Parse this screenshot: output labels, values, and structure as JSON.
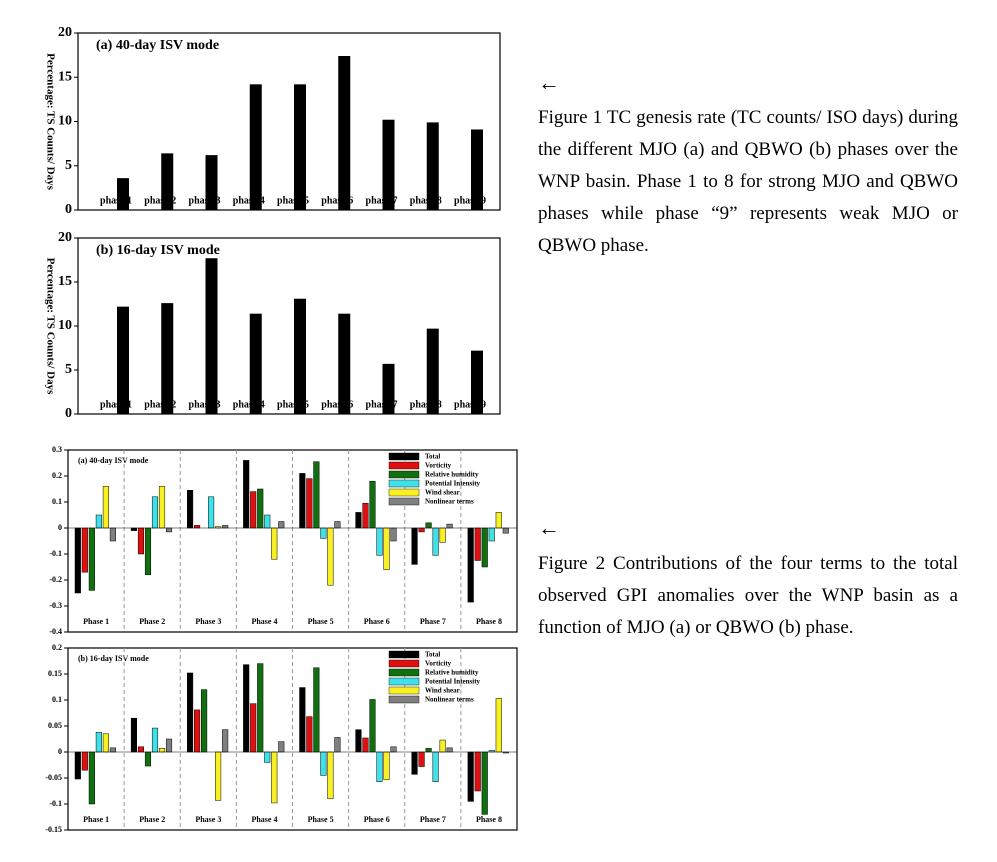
{
  "chart_data": [
    {
      "type": "bar",
      "title": "(a) 40-day ISV mode",
      "y_label": "Percentage: TS Counts/ Days",
      "categories": [
        "phase 1",
        "phase 2",
        "phase 3",
        "phase 4",
        "phase 5",
        "phase 6",
        "phase 7",
        "phase 8",
        "phase 9"
      ],
      "values": [
        3.6,
        6.4,
        6.2,
        14.2,
        14.2,
        17.4,
        10.2,
        9.9,
        9.1
      ],
      "color": "#000000",
      "ylim": [
        0,
        20
      ],
      "yticks": [
        0,
        5,
        10,
        15,
        20
      ],
      "grid": false
    },
    {
      "type": "bar",
      "title": "(b) 16-day ISV mode",
      "y_label": "Percentage: TS Counts/ Days",
      "categories": [
        "phase 1",
        "phase 2",
        "phase 3",
        "phase 4",
        "phase 5",
        "phase 6",
        "phase 7",
        "phase 8",
        "phase 9"
      ],
      "values": [
        12.2,
        12.6,
        17.7,
        11.4,
        13.1,
        11.4,
        5.7,
        9.7,
        7.2
      ],
      "color": "#000000",
      "ylim": [
        0,
        20
      ],
      "yticks": [
        0,
        5,
        10,
        15,
        20
      ],
      "grid": false
    },
    {
      "type": "bar",
      "title": "(a) 40-day ISV mode",
      "categories": [
        "Phase 1",
        "Phase 2",
        "Phase 3",
        "Phase 4",
        "Phase 5",
        "Phase 6",
        "Phase 7",
        "Phase 8"
      ],
      "series": [
        {
          "name": "Total",
          "color": "#000000",
          "values": [
            -0.25,
            -0.01,
            0.145,
            0.26,
            0.21,
            0.06,
            -0.14,
            -0.285
          ]
        },
        {
          "name": "Vorticity",
          "color": "#e01010",
          "values": [
            -0.17,
            -0.1,
            0.01,
            0.14,
            0.19,
            0.095,
            -0.015,
            -0.125
          ]
        },
        {
          "name": "Relative humidity",
          "color": "#107010",
          "values": [
            -0.24,
            -0.18,
            0.0,
            0.15,
            0.255,
            0.18,
            0.02,
            -0.15
          ]
        },
        {
          "name": "Potential Intensity",
          "color": "#40e0e8",
          "values": [
            0.05,
            0.12,
            0.12,
            0.05,
            -0.04,
            -0.105,
            -0.105,
            -0.05
          ]
        },
        {
          "name": "Wind shear",
          "color": "#f8f020",
          "values": [
            0.16,
            0.16,
            0.005,
            -0.12,
            -0.22,
            -0.16,
            -0.055,
            0.06
          ]
        },
        {
          "name": "Nonlinear terms",
          "color": "#808080",
          "values": [
            -0.05,
            -0.015,
            0.01,
            0.025,
            0.025,
            -0.05,
            0.015,
            -0.02
          ]
        }
      ],
      "ylim": [
        -0.4,
        0.3
      ],
      "yticks": [
        -0.4,
        -0.3,
        -0.2,
        -0.1,
        0,
        0.1,
        0.2,
        0.3
      ],
      "grid": false,
      "legend": "upper right",
      "category_separators": true
    },
    {
      "type": "bar",
      "title": "(b) 16-day ISV mode",
      "categories": [
        "Phase 1",
        "Phase 2",
        "Phase 3",
        "Phase 4",
        "Phase 5",
        "Phase 6",
        "Phase 7",
        "Phase 8"
      ],
      "series": [
        {
          "name": "Total",
          "color": "#000000",
          "values": [
            -0.052,
            0.065,
            0.152,
            0.168,
            0.124,
            0.043,
            -0.043,
            -0.095
          ]
        },
        {
          "name": "Vorticity",
          "color": "#e01010",
          "values": [
            -0.035,
            0.01,
            0.081,
            0.093,
            0.068,
            0.027,
            -0.028,
            -0.075
          ]
        },
        {
          "name": "Relative humidity",
          "color": "#107010",
          "values": [
            -0.1,
            -0.027,
            0.12,
            0.17,
            0.162,
            0.101,
            0.007,
            -0.12
          ]
        },
        {
          "name": "Potential Intensity",
          "color": "#40e0e8",
          "values": [
            0.038,
            0.046,
            0.0,
            -0.02,
            -0.045,
            -0.057,
            -0.057,
            0.003
          ]
        },
        {
          "name": "Wind shear",
          "color": "#f8f020",
          "values": [
            0.035,
            0.007,
            -0.093,
            -0.098,
            -0.09,
            -0.053,
            0.023,
            0.103
          ]
        },
        {
          "name": "Nonlinear terms",
          "color": "#808080",
          "values": [
            0.008,
            0.025,
            0.043,
            0.02,
            0.028,
            0.01,
            0.008,
            -0.002
          ]
        }
      ],
      "ylim": [
        -0.15,
        0.2
      ],
      "yticks": [
        -0.15,
        -0.1,
        -0.05,
        0,
        0.05,
        0.1,
        0.15,
        0.2
      ],
      "grid": false,
      "legend": "upper right",
      "category_separators": true
    }
  ],
  "captions": [
    {
      "arrow": "←",
      "text": "Figure 1 TC genesis rate (TC counts/ ISO days) during the different MJO (a) and QBWO (b) phases over the WNP basin. Phase 1 to 8 for strong MJO and QBWO phases while phase “9” represents weak MJO or QBWO phase."
    },
    {
      "arrow": "←",
      "text": "Figure 2 Contributions of the four terms to the total observed GPI anomalies over the WNP basin as a function of MJO (a) or QBWO (b) phase."
    }
  ]
}
